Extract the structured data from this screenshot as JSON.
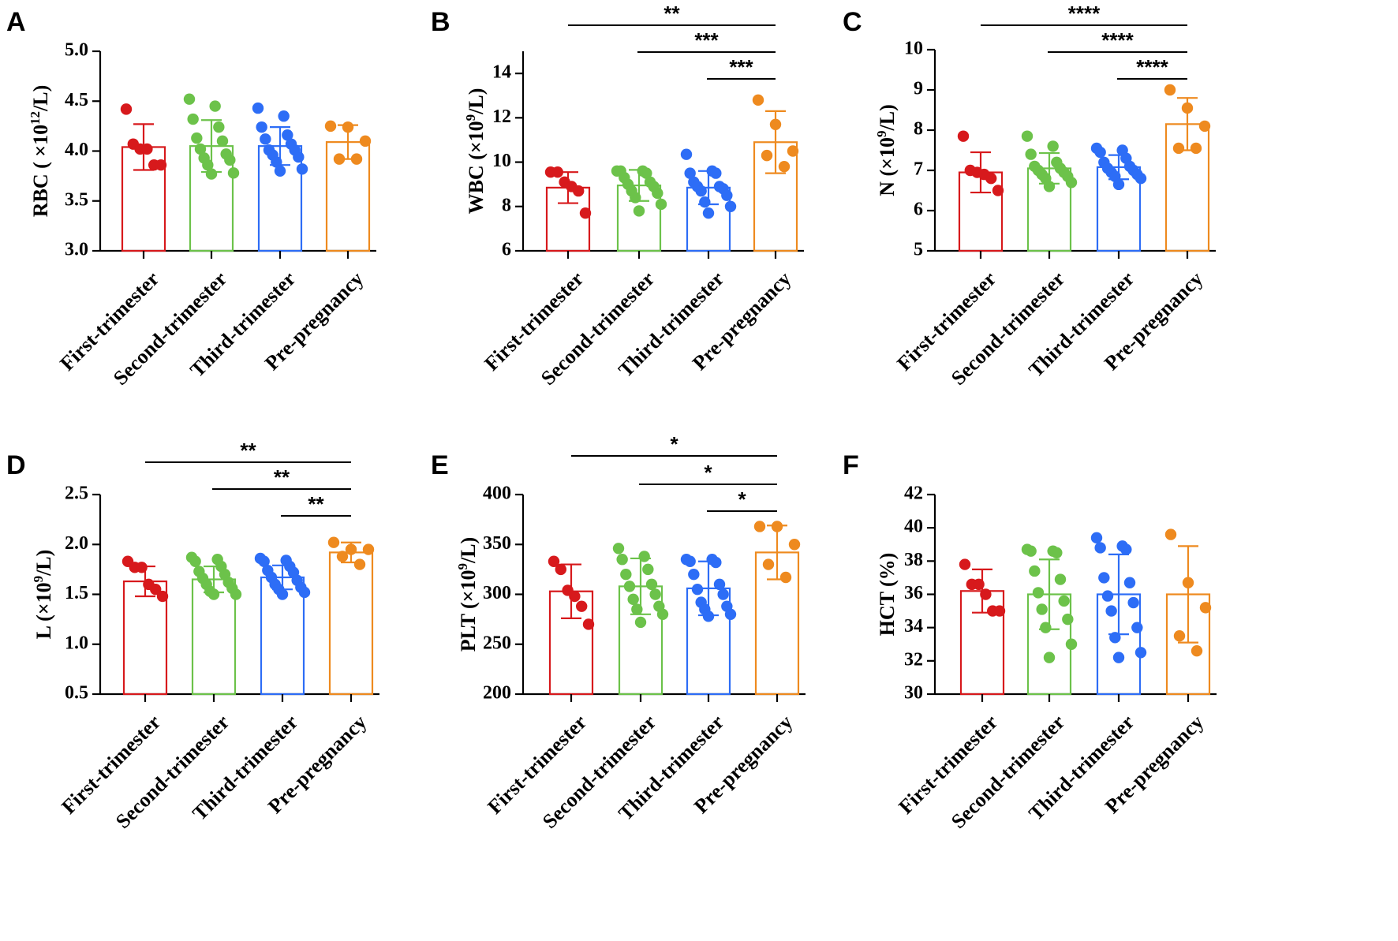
{
  "colors": {
    "First-trimester": "#d7191c",
    "Second-trimester": "#6cc24a",
    "Third-trimester": "#2d6df6",
    "Pre-pregnancy": "#ee8a1f"
  },
  "chart_data": [
    {
      "panel": "A",
      "type": "bar",
      "ylabel": "RBC ( ×10",
      "ylabel_sup": "12",
      "ylabel_tail": "/L)",
      "ylim": [
        3.0,
        5.0
      ],
      "yticks": [
        3.0,
        3.5,
        4.0,
        4.5,
        5.0
      ],
      "ytick_labels": [
        "3.0",
        "3.5",
        "4.0",
        "4.5",
        "5.0"
      ],
      "categories": [
        "First-trimester",
        "Second-trimester",
        "Third-trimester",
        "Pre-pregnancy"
      ],
      "means": [
        4.04,
        4.05,
        4.05,
        4.09
      ],
      "sd": [
        0.23,
        0.26,
        0.19,
        0.17
      ],
      "points": [
        [
          4.42,
          4.07,
          4.02,
          4.02,
          3.86,
          3.86
        ],
        [
          4.52,
          4.45,
          4.32,
          4.24,
          4.13,
          4.1,
          4.02,
          3.97,
          3.93,
          3.91,
          3.86,
          3.78,
          3.77
        ],
        [
          4.43,
          4.35,
          4.24,
          4.16,
          4.12,
          4.07,
          4.01,
          4.01,
          3.96,
          3.94,
          3.89,
          3.82,
          3.8
        ],
        [
          4.25,
          4.24,
          4.1,
          3.92,
          3.92
        ]
      ],
      "significance": []
    },
    {
      "panel": "B",
      "type": "bar",
      "ylabel": "WBC (×10",
      "ylabel_sup": "9",
      "ylabel_tail": "/L)",
      "ylim": [
        6,
        15
      ],
      "yticks": [
        6,
        8,
        10,
        12,
        14
      ],
      "ytick_labels": [
        "6",
        "8",
        "10",
        "12",
        "14"
      ],
      "categories": [
        "First-trimester",
        "Second-trimester",
        "Third-trimester",
        "Pre-pregnancy"
      ],
      "means": [
        8.85,
        8.95,
        8.85,
        10.9
      ],
      "sd": [
        0.7,
        0.7,
        0.75,
        1.4
      ],
      "points": [
        [
          9.55,
          9.55,
          9.1,
          8.9,
          8.7,
          7.7
        ],
        [
          9.6,
          9.6,
          9.6,
          9.5,
          9.3,
          9.1,
          9.0,
          8.9,
          8.7,
          8.6,
          8.4,
          8.1,
          7.8
        ],
        [
          10.35,
          9.6,
          9.5,
          9.5,
          9.1,
          8.9,
          8.9,
          8.8,
          8.7,
          8.5,
          8.2,
          8.0,
          7.7
        ],
        [
          12.8,
          11.7,
          10.5,
          10.3,
          9.8
        ]
      ],
      "significance": [
        {
          "from": 0,
          "to": 3,
          "label": "**"
        },
        {
          "from": 1,
          "to": 3,
          "label": "***"
        },
        {
          "from": 2,
          "to": 3,
          "label": "***"
        }
      ]
    },
    {
      "panel": "C",
      "type": "bar",
      "ylabel": "N (×10",
      "ylabel_sup": "9",
      "ylabel_tail": "/L)",
      "ylim": [
        5,
        10
      ],
      "yticks": [
        5,
        6,
        7,
        8,
        9,
        10
      ],
      "ytick_labels": [
        "5",
        "6",
        "7",
        "8",
        "9",
        "10"
      ],
      "categories": [
        "First-trimester",
        "Second-trimester",
        "Third-trimester",
        "Pre-pregnancy"
      ],
      "means": [
        6.95,
        7.05,
        7.08,
        8.15
      ],
      "sd": [
        0.5,
        0.38,
        0.3,
        0.65
      ],
      "points": [
        [
          7.85,
          7.0,
          6.95,
          6.9,
          6.8,
          6.5
        ],
        [
          7.85,
          7.6,
          7.4,
          7.2,
          7.1,
          7.05,
          7.0,
          6.95,
          6.9,
          6.85,
          6.8,
          6.7,
          6.6
        ],
        [
          7.55,
          7.5,
          7.45,
          7.3,
          7.2,
          7.1,
          7.05,
          7.0,
          6.95,
          6.9,
          6.85,
          6.8,
          6.65
        ],
        [
          9.0,
          8.55,
          8.1,
          7.55,
          7.55
        ]
      ],
      "significance": [
        {
          "from": 0,
          "to": 3,
          "label": "****"
        },
        {
          "from": 1,
          "to": 3,
          "label": "****"
        },
        {
          "from": 2,
          "to": 3,
          "label": "****"
        }
      ]
    },
    {
      "panel": "D",
      "type": "bar",
      "ylabel": "L (×10",
      "ylabel_sup": "9",
      "ylabel_tail": "/L)",
      "ylim": [
        0.5,
        2.5
      ],
      "yticks": [
        0.5,
        1.0,
        1.5,
        2.0,
        2.5
      ],
      "ytick_labels": [
        "0.5",
        "1.0",
        "1.5",
        "2.0",
        "2.5"
      ],
      "categories": [
        "First-trimester",
        "Second-trimester",
        "Third-trimester",
        "Pre-pregnancy"
      ],
      "means": [
        1.63,
        1.65,
        1.67,
        1.92
      ],
      "sd": [
        0.15,
        0.13,
        0.12,
        0.1
      ],
      "points": [
        [
          1.83,
          1.77,
          1.77,
          1.6,
          1.55,
          1.48
        ],
        [
          1.87,
          1.85,
          1.83,
          1.78,
          1.73,
          1.7,
          1.66,
          1.62,
          1.6,
          1.56,
          1.53,
          1.5,
          1.5
        ],
        [
          1.86,
          1.84,
          1.83,
          1.78,
          1.74,
          1.72,
          1.67,
          1.64,
          1.6,
          1.57,
          1.55,
          1.52,
          1.5
        ],
        [
          2.02,
          1.95,
          1.95,
          1.88,
          1.8
        ]
      ],
      "significance": [
        {
          "from": 0,
          "to": 3,
          "label": "**"
        },
        {
          "from": 1,
          "to": 3,
          "label": "**"
        },
        {
          "from": 2,
          "to": 3,
          "label": "**"
        }
      ]
    },
    {
      "panel": "E",
      "type": "bar",
      "ylabel": "PLT (×10",
      "ylabel_sup": "9",
      "ylabel_tail": "/L)",
      "ylim": [
        200,
        400
      ],
      "yticks": [
        200,
        250,
        300,
        350,
        400
      ],
      "ytick_labels": [
        "200",
        "250",
        "300",
        "350",
        "400"
      ],
      "categories": [
        "First-trimester",
        "Second-trimester",
        "Third-trimester",
        "Pre-pregnancy"
      ],
      "means": [
        303,
        308,
        306,
        342
      ],
      "sd": [
        27,
        28,
        27,
        27
      ],
      "points": [
        [
          333,
          325,
          304,
          298,
          288,
          270
        ],
        [
          346,
          338,
          335,
          325,
          320,
          310,
          308,
          300,
          295,
          288,
          285,
          280,
          272
        ],
        [
          335,
          335,
          333,
          332,
          320,
          310,
          305,
          300,
          292,
          288,
          285,
          280,
          278
        ],
        [
          368,
          368,
          350,
          330,
          317
        ]
      ],
      "significance": [
        {
          "from": 0,
          "to": 3,
          "label": "*"
        },
        {
          "from": 1,
          "to": 3,
          "label": "*"
        },
        {
          "from": 2,
          "to": 3,
          "label": "*"
        }
      ]
    },
    {
      "panel": "F",
      "type": "bar",
      "ylabel": "HCT (%)",
      "ylabel_sup": "",
      "ylabel_tail": "",
      "ylim": [
        30,
        42
      ],
      "yticks": [
        30,
        32,
        34,
        36,
        38,
        40,
        42
      ],
      "ytick_labels": [
        "30",
        "32",
        "34",
        "36",
        "38",
        "40",
        "42"
      ],
      "categories": [
        "First-trimester",
        "Second-trimester",
        "Third-trimester",
        "Pre-pregnancy"
      ],
      "means": [
        36.2,
        36.0,
        36.0,
        36.0
      ],
      "sd": [
        1.3,
        2.1,
        2.4,
        2.9
      ],
      "points": [
        [
          37.8,
          36.6,
          36.6,
          36.0,
          35.0,
          35.0
        ],
        [
          38.7,
          38.6,
          38.6,
          38.5,
          37.4,
          36.9,
          36.1,
          35.6,
          35.1,
          34.5,
          34.0,
          33.0,
          32.2
        ],
        [
          39.4,
          38.9,
          38.8,
          38.7,
          37.0,
          36.7,
          35.9,
          35.5,
          35.0,
          34.0,
          33.4,
          32.5,
          32.2
        ],
        [
          39.6,
          36.7,
          35.2,
          33.5,
          32.6
        ]
      ],
      "significance": []
    }
  ]
}
